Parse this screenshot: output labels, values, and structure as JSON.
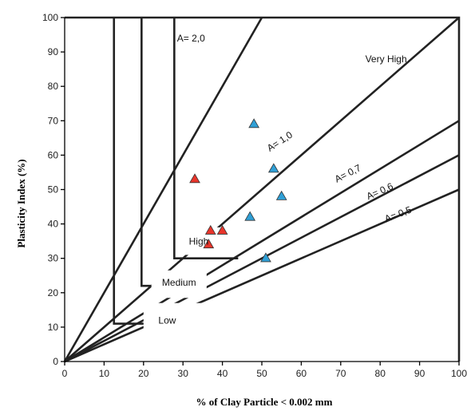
{
  "chart_data": {
    "type": "scatter",
    "title": "",
    "xlabel": "% of Clay Particle < 0.002 mm",
    "ylabel": "Plasticity Index (%)",
    "xlim": [
      0,
      100
    ],
    "ylim": [
      0,
      100
    ],
    "x_ticks": [
      0,
      10,
      20,
      30,
      40,
      50,
      60,
      70,
      80,
      90,
      100
    ],
    "y_ticks": [
      0,
      10,
      20,
      30,
      40,
      50,
      60,
      70,
      80,
      90,
      100
    ],
    "grid": false,
    "activity_lines": [
      {
        "label": "A= 2,0",
        "slope": 2.0
      },
      {
        "label": "A= 1,0",
        "slope": 1.0
      },
      {
        "label": "A= 0,7",
        "slope": 0.7
      },
      {
        "label": "A= 0,6",
        "slope": 0.6
      },
      {
        "label": "A= 0,5",
        "slope": 0.5
      }
    ],
    "zones": [
      {
        "label": "Very High"
      },
      {
        "label": "High"
      },
      {
        "label": "Medium"
      },
      {
        "label": "Low"
      }
    ],
    "series": [
      {
        "marker": "triangle",
        "color": "#e8352b",
        "points": [
          {
            "x": 33,
            "y": 53
          },
          {
            "x": 37,
            "y": 38
          },
          {
            "x": 40,
            "y": 38
          },
          {
            "x": 36.5,
            "y": 34
          }
        ]
      },
      {
        "marker": "triangle",
        "color": "#2f9fd6",
        "points": [
          {
            "x": 48,
            "y": 69
          },
          {
            "x": 53,
            "y": 56
          },
          {
            "x": 55,
            "y": 48
          },
          {
            "x": 47,
            "y": 42
          },
          {
            "x": 51,
            "y": 30
          }
        ]
      }
    ]
  }
}
